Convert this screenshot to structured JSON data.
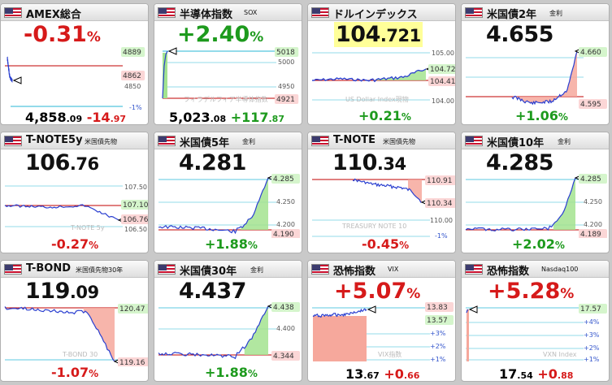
{
  "tiles": [
    {
      "id": "amex",
      "title": "AMEX総合",
      "subtitle": "",
      "change_int": "-0.31",
      "change_unit": "%",
      "change_dir": "neg",
      "axis_labels": [
        "4889",
        "4862",
        "4850",
        "-1%"
      ],
      "bottom_price_int": "4,858",
      "bottom_price_dec": ".09",
      "bottom_change_int": "-14",
      "bottom_change_dec": ".97",
      "bottom_change_dir": "neg"
    },
    {
      "id": "sox",
      "title": "半導体指数",
      "subtitle": "SOX",
      "change_int": "+2.40",
      "change_unit": "%",
      "change_dir": "pos",
      "axis_labels": [
        "5018",
        "5000",
        "4950",
        "4921"
      ],
      "watermark": "フィラデルフィア半導体指数",
      "bottom_price_int": "5,023",
      "bottom_price_dec": ".08",
      "bottom_change_int": "+117",
      "bottom_change_dec": ".87",
      "bottom_change_dir": "pos"
    },
    {
      "id": "dxy",
      "title": "ドルインデックス",
      "subtitle": "",
      "price_int": "104",
      "price_dec": ".721",
      "axis_labels": [
        "105.00",
        "104.72",
        "104.41",
        "104.00"
      ],
      "watermark": "US Dollar Index現物",
      "bottom_pct": "+0.21",
      "bottom_pct_unit": "%",
      "bottom_pct_dir": "pos"
    },
    {
      "id": "us2y",
      "title": "米国債2年",
      "subtitle": "金利",
      "price_int": "4.655",
      "price_dec": "",
      "axis_labels": [
        "4.660",
        "4.595"
      ],
      "bottom_pct": "+1.06",
      "bottom_pct_unit": "%",
      "bottom_pct_dir": "pos"
    },
    {
      "id": "tnote5",
      "title": "T-NOTE5y",
      "subtitle": "米国債先物",
      "price_int": "106",
      "price_dec": ".76",
      "axis_labels": [
        "107.50",
        "107.10",
        "106.76",
        "106.50"
      ],
      "watermark": "T-NOTE 5y",
      "bottom_pct": "-0.27",
      "bottom_pct_unit": "%",
      "bottom_pct_dir": "neg"
    },
    {
      "id": "us5y",
      "title": "米国債5年",
      "subtitle": "金利",
      "price_int": "4.281",
      "price_dec": "",
      "axis_labels": [
        "4.285",
        "4.250",
        "4.200",
        "4.190"
      ],
      "bottom_pct": "+1.88",
      "bottom_pct_unit": "%",
      "bottom_pct_dir": "pos"
    },
    {
      "id": "tnote",
      "title": "T-NOTE",
      "subtitle": "米国債先物",
      "price_int": "110",
      "price_dec": ".34",
      "axis_labels": [
        "110.91",
        "110.34",
        "110.00",
        "-1%"
      ],
      "watermark": "TREASURY NOTE 10",
      "bottom_pct": "-0.45",
      "bottom_pct_unit": "%",
      "bottom_pct_dir": "neg"
    },
    {
      "id": "us10y",
      "title": "米国債10年",
      "subtitle": "金利",
      "price_int": "4.285",
      "price_dec": "",
      "axis_labels": [
        "4.285",
        "4.250",
        "4.200",
        "4.189"
      ],
      "bottom_pct": "+2.02",
      "bottom_pct_unit": "%",
      "bottom_pct_dir": "pos"
    },
    {
      "id": "tbond",
      "title": "T-BOND",
      "subtitle": "米国債先物30年",
      "price_int": "119",
      "price_dec": ".09",
      "axis_labels": [
        "120.47",
        "119.16"
      ],
      "watermark": "T-BOND 30",
      "bottom_pct": "-1.07",
      "bottom_pct_unit": "%",
      "bottom_pct_dir": "neg"
    },
    {
      "id": "us30y",
      "title": "米国債30年",
      "subtitle": "金利",
      "price_int": "4.437",
      "price_dec": "",
      "axis_labels": [
        "4.438",
        "4.400",
        "4.344"
      ],
      "bottom_pct": "+1.88",
      "bottom_pct_unit": "%",
      "bottom_pct_dir": "pos"
    },
    {
      "id": "vix",
      "title": "恐怖指数",
      "subtitle": "VIX",
      "change_int": "+5.07",
      "change_unit": "%",
      "change_dir": "neg",
      "axis_labels": [
        "13.83",
        "13.57",
        "+3%",
        "+2%",
        "+1%"
      ],
      "watermark": "VIX指数",
      "bottom_price_int": "13",
      "bottom_price_dec": ".67",
      "bottom_change_int": "+0",
      "bottom_change_dec": ".66",
      "bottom_change_dir": "neg"
    },
    {
      "id": "vxn",
      "title": "恐怖指数",
      "subtitle": "Nasdaq100",
      "change_int": "+5.28",
      "change_unit": "%",
      "change_dir": "neg",
      "axis_labels": [
        "17.57",
        "+4%",
        "+3%",
        "+2%",
        "+1%"
      ],
      "watermark": "VXN Index",
      "bottom_price_int": "17",
      "bottom_price_dec": ".54",
      "bottom_change_int": "+0",
      "bottom_change_dec": ".88",
      "bottom_change_dir": "neg"
    }
  ],
  "colors": {
    "up": "#1d9a1d",
    "down": "#d61a1a",
    "line": "#2a3fd0",
    "refline": "#c00000",
    "cyan": "#29b7d6",
    "green_label": "#d5f5cc",
    "red_label": "#fbd6d6",
    "green_fill": "#a3e38f",
    "red_fill": "#f6a89c"
  }
}
